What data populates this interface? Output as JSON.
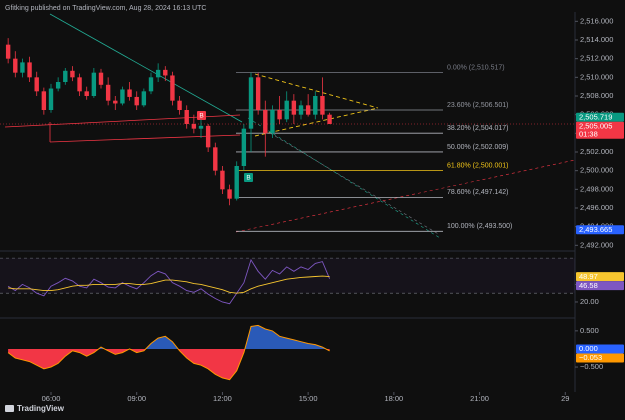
{
  "header": {
    "text": "Gfitking published on TradingView.com, Aug 28, 2024 16:13 UTC"
  },
  "footer": {
    "text": "TradingView"
  },
  "chart_data": [
    {
      "type": "candlestick",
      "x": [
        4.5,
        4.75,
        5,
        5.25,
        5.5,
        5.75,
        6,
        6.25,
        6.5,
        6.75,
        7,
        7.25,
        7.5,
        7.75,
        8,
        8.25,
        8.5,
        8.75,
        9,
        9.25,
        9.5,
        9.75,
        10,
        10.25,
        10.5,
        10.75,
        11,
        11.25,
        11.5,
        11.75,
        12,
        12.25,
        12.5,
        12.75,
        13,
        13.25,
        13.5,
        13.75,
        14,
        14.25,
        14.5,
        14.75,
        15,
        15.25,
        15.5,
        15.75
      ],
      "open": [
        2513.5,
        2512,
        2510.5,
        2511.6,
        2510,
        2508.5,
        2506.5,
        2508.8,
        2509.5,
        2510.7,
        2510,
        2508.5,
        2508,
        2510.5,
        2509.2,
        2507.5,
        2507.2,
        2508.7,
        2507.9,
        2507,
        2508.5,
        2510,
        2510.8,
        2510.2,
        2507.5,
        2506.5,
        2505,
        2504.5,
        2504.8,
        2502.5,
        2500,
        2498,
        2497,
        2500.5,
        2504.5,
        2510,
        2506.5,
        2504,
        2506.5,
        2505.5,
        2507.5,
        2506,
        2507,
        2506,
        2508,
        2506
      ],
      "high": [
        2514.2,
        2512.8,
        2512,
        2512.2,
        2510.6,
        2508.9,
        2509.3,
        2510,
        2511,
        2511.2,
        2510.4,
        2509,
        2511,
        2510.9,
        2510,
        2508,
        2509,
        2509.5,
        2508.5,
        2508.8,
        2510.5,
        2511.5,
        2511.2,
        2510.6,
        2508,
        2507,
        2506,
        2505.5,
        2505,
        2503,
        2500.5,
        2498.5,
        2501,
        2505,
        2510.5,
        2510.5,
        2507.5,
        2507,
        2508,
        2508.5,
        2508.2,
        2507.5,
        2508.2,
        2508.5,
        2510,
        2506.2
      ],
      "low": [
        2511.5,
        2510,
        2510,
        2509.5,
        2508,
        2506,
        2506.2,
        2508.5,
        2509.2,
        2509.6,
        2508,
        2507.6,
        2507.8,
        2508.8,
        2507,
        2506.5,
        2507,
        2507.5,
        2506.5,
        2506.8,
        2508.2,
        2509.5,
        2509.6,
        2507,
        2506,
        2504.5,
        2504,
        2503.5,
        2502,
        2499.5,
        2497.5,
        2496.3,
        2496.8,
        2500,
        2502,
        2506,
        2501.5,
        2503.5,
        2505,
        2505.2,
        2505,
        2505.5,
        2505.8,
        2505.5,
        2505.5,
        2505
      ],
      "close": [
        2512,
        2510.5,
        2511.6,
        2510,
        2508.5,
        2506.5,
        2508.8,
        2509.5,
        2510.7,
        2510,
        2508.5,
        2508,
        2510.5,
        2509.2,
        2507.5,
        2507.2,
        2508.7,
        2507.9,
        2507,
        2508.5,
        2510,
        2510.8,
        2510.2,
        2507.5,
        2506.5,
        2505,
        2504.5,
        2504.8,
        2502.5,
        2500,
        2498,
        2497,
        2500.5,
        2504.5,
        2510,
        2506.5,
        2504,
        2506.5,
        2505.5,
        2507.5,
        2506,
        2507,
        2506,
        2508,
        2506,
        2505
      ],
      "up_color": "#089981",
      "down_color": "#f23645",
      "xlim": [
        4.215,
        24.34
      ],
      "xticks": [
        {
          "value": 6,
          "label": "06:00"
        },
        {
          "value": 9,
          "label": "09:00"
        },
        {
          "value": 12,
          "label": "12:00"
        },
        {
          "value": 15,
          "label": "15:00"
        },
        {
          "value": 18,
          "label": "18:00"
        },
        {
          "value": 21,
          "label": "21:00"
        },
        {
          "value": 24,
          "label": "29"
        }
      ],
      "ylim": [
        2491.5,
        2517
      ],
      "yticks": [
        {
          "value": 2492,
          "label": "2,492.000"
        },
        {
          "value": 2494,
          "label": "2,494.000"
        },
        {
          "value": 2496,
          "label": "2,496.000"
        },
        {
          "value": 2498,
          "label": "2,498.000"
        },
        {
          "value": 2500,
          "label": "2,500.000"
        },
        {
          "value": 2502,
          "label": "2,502.000"
        },
        {
          "value": 2504,
          "label": "2,504.000"
        },
        {
          "value": 2506,
          "label": "2,506.000"
        },
        {
          "value": 2508,
          "label": "2,508.000"
        },
        {
          "value": 2510,
          "label": "2,510.000"
        },
        {
          "value": 2512,
          "label": "2,512.000"
        },
        {
          "value": 2514,
          "label": "2,514.000"
        },
        {
          "value": 2516,
          "label": "2,516.000"
        }
      ],
      "fib_levels": [
        {
          "label": "0.00% (2,510.517)",
          "value": 2510.517,
          "color": "#787b86"
        },
        {
          "label": "23.60% (2,506.501)",
          "value": 2506.501,
          "color": "#9598a1"
        },
        {
          "label": "38.20% (2,504.017)",
          "value": 2504.017,
          "color": "#b2b5be"
        },
        {
          "label": "50.00% (2,502.009)",
          "value": 2502.009,
          "color": "#b2b5be"
        },
        {
          "label": "61.80% (2,500.001)",
          "value": 2500.001,
          "color": "#f0c419"
        },
        {
          "label": "78.60% (2,497.142)",
          "value": 2497.142,
          "color": "#b2b5be"
        },
        {
          "label": "100.00% (2,493.500)",
          "value": 2493.5,
          "color": "#b2b5be"
        }
      ],
      "price_tags": [
        {
          "label": "2,505.719",
          "value": 2505.719,
          "color": "#089981"
        },
        {
          "label": "2,505.005",
          "value": 2505.005,
          "color": "#f23645",
          "countdown": "01:38"
        },
        {
          "label": "2,493.665",
          "value": 2493.665,
          "color": "#2962ff"
        }
      ],
      "markers": [
        {
          "label": "B",
          "color": "#f23645"
        },
        {
          "label": "B",
          "color": "#089981"
        }
      ]
    },
    {
      "type": "line",
      "series": [
        {
          "color": "#7e57c2",
          "values": [
            38,
            33,
            40,
            36,
            30,
            27,
            38,
            42,
            47,
            44,
            38,
            36,
            46,
            42,
            37,
            36,
            42,
            38,
            35,
            42,
            50,
            55,
            52,
            42,
            38,
            33,
            31,
            35,
            29,
            24,
            20,
            18,
            30,
            42,
            68,
            55,
            46,
            56,
            52,
            60,
            55,
            60,
            57,
            64,
            66,
            46.58
          ]
        },
        {
          "color": "#f7c62f",
          "values": [
            36,
            35,
            35,
            35,
            34,
            33,
            33,
            34,
            36,
            38,
            39,
            39,
            40,
            40,
            40,
            40,
            41,
            41,
            40,
            40,
            41,
            43,
            45,
            45,
            44,
            43,
            41,
            40,
            38,
            36,
            34,
            31,
            30,
            31,
            35,
            38,
            40,
            42,
            44,
            46,
            47,
            48,
            48.5,
            49,
            49.5,
            48.97
          ]
        }
      ],
      "ylim": [
        4,
        77
      ],
      "yticks": [
        {
          "value": 40,
          "label": "40.00"
        },
        {
          "value": 20,
          "label": "20.00"
        }
      ],
      "bands": [
        30,
        70
      ],
      "value_tags": [
        {
          "value": 48.97,
          "label": "48.97",
          "color": "#f7c62f"
        },
        {
          "value": 46.58,
          "label": "46.58",
          "color": "#7e57c2"
        }
      ]
    },
    {
      "type": "area",
      "values": [
        -0.1,
        -0.25,
        -0.3,
        -0.35,
        -0.45,
        -0.55,
        -0.5,
        -0.4,
        -0.2,
        -0.05,
        -0.1,
        -0.2,
        -0.1,
        0.05,
        -0.05,
        -0.15,
        -0.1,
        0,
        -0.1,
        -0.05,
        0.15,
        0.3,
        0.35,
        0.2,
        -0.05,
        -0.25,
        -0.4,
        -0.45,
        -0.55,
        -0.7,
        -0.8,
        -0.85,
        -0.6,
        -0.1,
        0.62,
        0.65,
        0.55,
        0.5,
        0.35,
        0.3,
        0.25,
        0.2,
        0.15,
        0.12,
        0.05,
        -0.053
      ],
      "positive_color": "#2a5ab8",
      "negative_color": "#f23645",
      "line_color": "#ff9800",
      "ylim": [
        -1.19,
        0.8
      ],
      "yticks": [
        {
          "value": 0.5,
          "label": "0.500"
        },
        {
          "value": -0.5,
          "label": "−0.500"
        }
      ],
      "value_tags": [
        {
          "value": 0,
          "label": "0.000",
          "color": "#2962ff"
        },
        {
          "value": -0.053,
          "label": "−0.053",
          "color": "#ff9800"
        }
      ]
    }
  ]
}
